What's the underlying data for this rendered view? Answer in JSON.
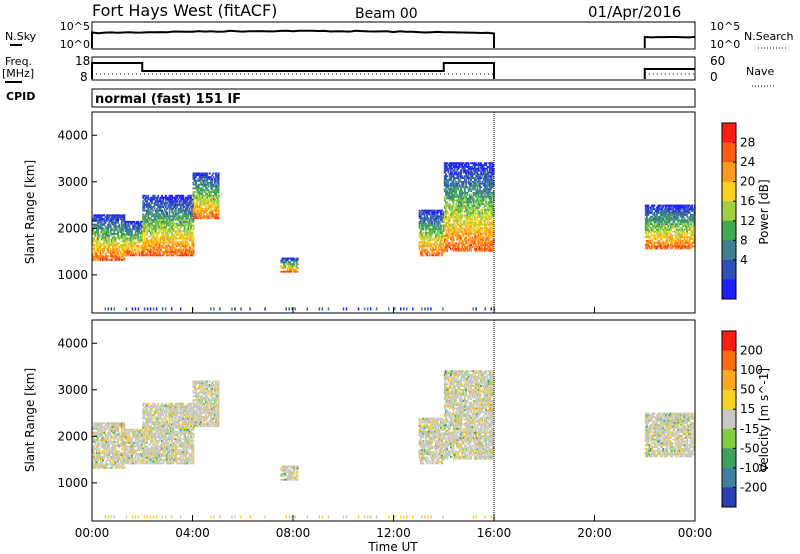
{
  "header": {
    "site": "Fort Hays West (fitACF)",
    "beam": "Beam 00",
    "date": "01/Apr/2016"
  },
  "strip_labels": {
    "nsky": "N.Sky",
    "freq_top": "Freq.",
    "freq_unit": "[MHz]",
    "cpid": "CPID",
    "nsearch": "N.Search",
    "nave": "Nave",
    "cpid_value": "normal (fast) 151 IF"
  },
  "noise_axis_left": [
    "10^5",
    "10^0"
  ],
  "noise_axis_right": [
    "10^5",
    "10^0"
  ],
  "freq_axis_left": [
    "18",
    "8"
  ],
  "nave_axis_right": [
    "60",
    "0"
  ],
  "x_axis": {
    "label": "Time UT",
    "ticks": [
      "00:00",
      "04:00",
      "08:00",
      "12:00",
      "16:00",
      "20:00",
      "00:00"
    ]
  },
  "y_axis": {
    "label": "Slant Range [km]",
    "ticks": [
      "1000",
      "2000",
      "3000",
      "4000"
    ]
  },
  "power_bar": {
    "label": "Power [dB]",
    "ticks": [
      "4",
      "8",
      "12",
      "16",
      "20",
      "24",
      "28"
    ],
    "colors": [
      "#1e1eff",
      "#2f4fb8",
      "#3f7f8f",
      "#3faa4f",
      "#9fd03f",
      "#ffd21e",
      "#ff9a1e",
      "#ff5a14",
      "#ff1e14"
    ]
  },
  "velocity_bar": {
    "label": "Velocity [m s^-1]",
    "ticks": [
      "200",
      "100",
      "50",
      "15",
      "-15",
      "-50",
      "-100",
      "-200"
    ],
    "colors": [
      "#2a3fb0",
      "#3f7f9f",
      "#3fa060",
      "#7fd040",
      "#c8c8c0",
      "#ffd21e",
      "#ffaa1e",
      "#ff6a14",
      "#ff1e14"
    ]
  },
  "chart_data": {
    "type": "heatmap",
    "x_range_hours": [
      0,
      24
    ],
    "y_range_km": [
      180,
      4500
    ],
    "data_gap_utc": [
      16.0,
      22.0
    ],
    "echo_regions": [
      {
        "start": 0.0,
        "end": 1.3,
        "low_km": 1300,
        "high_km": 2300
      },
      {
        "start": 1.3,
        "end": 2.0,
        "low_km": 1400,
        "high_km": 2150
      },
      {
        "start": 2.0,
        "end": 4.0,
        "low_km": 1400,
        "high_km": 2700
      },
      {
        "start": 4.0,
        "end": 5.0,
        "low_km": 2200,
        "high_km": 3200
      },
      {
        "start": 7.5,
        "end": 8.2,
        "low_km": 1050,
        "high_km": 1350
      },
      {
        "start": 13.0,
        "end": 14.0,
        "low_km": 1400,
        "high_km": 2400
      },
      {
        "start": 14.0,
        "end": 16.0,
        "low_km": 1500,
        "high_km": 3400
      },
      {
        "start": 22.0,
        "end": 24.0,
        "low_km": 1550,
        "high_km": 2500
      }
    ]
  }
}
